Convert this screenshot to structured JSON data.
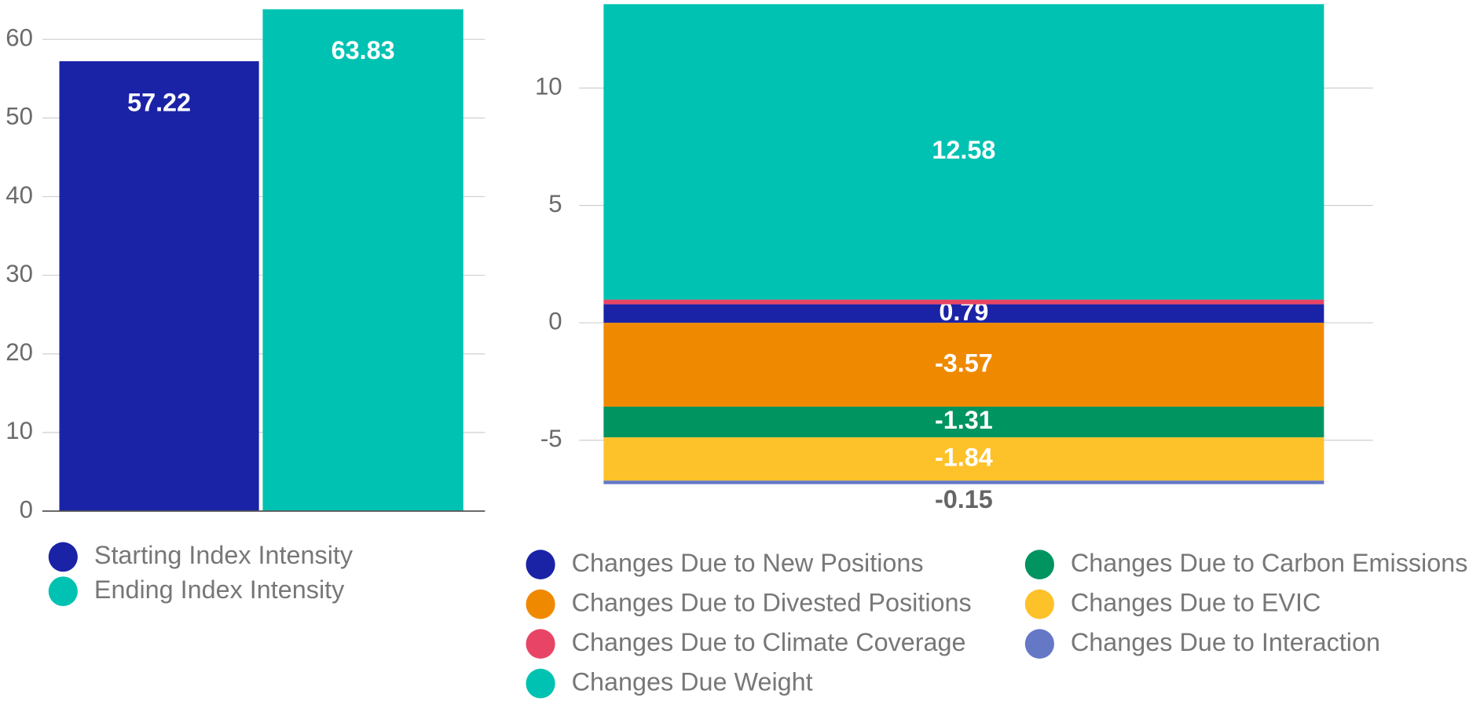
{
  "chart_data": [
    {
      "type": "bar",
      "series": [
        {
          "name": "Starting Index Intensity",
          "color": "#1a23a6",
          "values": [
            57.22
          ]
        },
        {
          "name": "Ending Index Intensity",
          "color": "#00c2b2",
          "values": [
            63.83
          ]
        }
      ],
      "ylim": [
        0,
        64.4
      ],
      "yticks": [
        0,
        10,
        20,
        30,
        40,
        50,
        60
      ],
      "grid": true
    },
    {
      "type": "stacked_bar",
      "series": [
        {
          "name": "Changes Due to New Positions",
          "color": "#1a23a6",
          "values": [
            0.79
          ]
        },
        {
          "name": "Changes Due to Divested Positions",
          "color": "#ef8a00",
          "values": [
            -3.57
          ]
        },
        {
          "name": "Changes Due to Climate Coverage",
          "color": "#e84566",
          "values": [
            0.2
          ],
          "data_labels": false
        },
        {
          "name": "Changes Due Weight",
          "color": "#00c2b2",
          "values": [
            12.58
          ]
        },
        {
          "name": "Changes Due to Carbon Emissions",
          "color": "#009460",
          "values": [
            -1.31
          ]
        },
        {
          "name": "Changes Due to EVIC",
          "color": "#fdc12a",
          "values": [
            -1.84
          ]
        },
        {
          "name": "Changes Due to Interaction",
          "color": "#6478c6",
          "values": [
            -0.15
          ]
        }
      ],
      "ylim": [
        -7,
        13.3
      ],
      "yticks": [
        -5,
        0,
        5,
        10
      ],
      "grid": true
    }
  ]
}
